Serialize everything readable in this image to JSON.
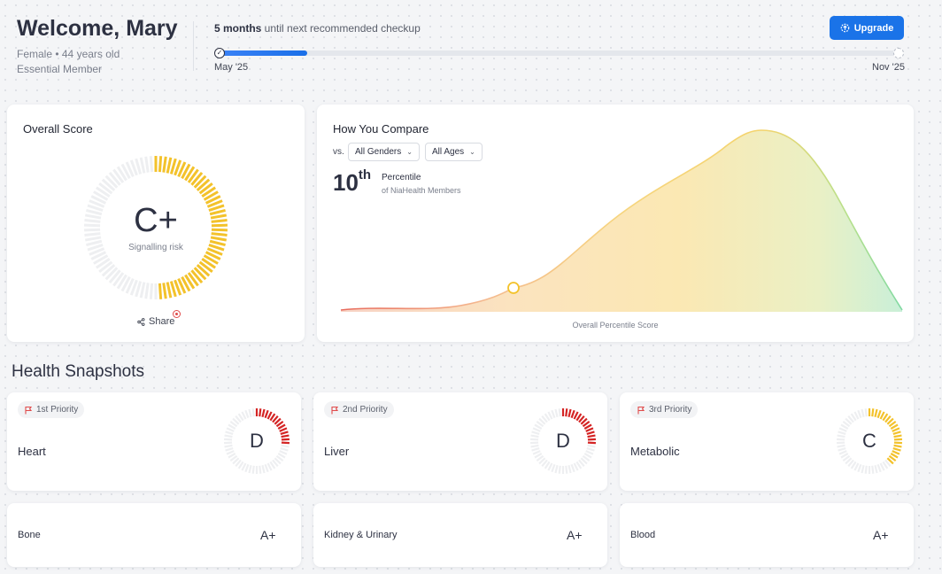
{
  "header": {
    "welcome": "Welcome, Mary",
    "gender_age": "Female • 44 years old",
    "membership": "Essential Member",
    "checkup_bold": "5 months",
    "checkup_rest": " until next recommended checkup",
    "checkup_progress": 0.13,
    "start_date": "May '25",
    "end_date": "Nov '25",
    "upgrade_label": "Upgrade"
  },
  "overall": {
    "title": "Overall Score",
    "grade": "C+",
    "subtitle": "Signalling risk",
    "score_fraction": 0.5,
    "color": "#f3c22b",
    "share_label": "Share"
  },
  "compare": {
    "title": "How You Compare",
    "vs_label": "vs.",
    "gender_filter": "All Genders",
    "age_filter": "All Ages",
    "percentile": "10",
    "percentile_suffix": "th",
    "percentile_label": "Percentile",
    "percentile_sub": "of NiaHealth Members",
    "axis_label": "Overall Percentile Score",
    "marker_color": "#f3c22b"
  },
  "snapshots": {
    "title": "Health Snapshots",
    "top": [
      {
        "priority": "1st Priority",
        "name": "Heart",
        "grade": "D",
        "fraction": 0.28,
        "color": "#d42424"
      },
      {
        "priority": "2nd Priority",
        "name": "Liver",
        "grade": "D",
        "fraction": 0.28,
        "color": "#d42424"
      },
      {
        "priority": "3rd Priority",
        "name": "Metabolic",
        "grade": "C",
        "fraction": 0.38,
        "color": "#f3c22b"
      }
    ],
    "bottom": [
      {
        "name": "Bone",
        "grade": "A+"
      },
      {
        "name": "Kidney & Urinary",
        "grade": "A+"
      },
      {
        "name": "Blood",
        "grade": "A+"
      }
    ]
  }
}
